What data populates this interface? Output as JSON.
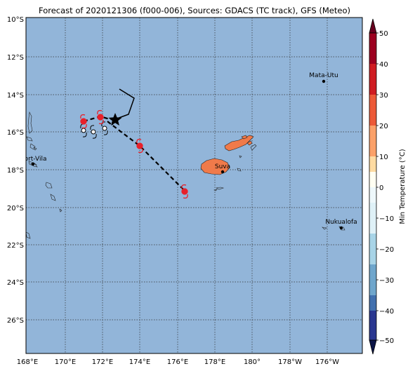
{
  "title": "Forecast of 2020121306 (f000-006), Sources: GDACS (TC track), GFS (Meteo)",
  "map": {
    "background_color": "#92b5d9",
    "land_color": "#f07a4a",
    "lat_labels": [
      "10°S",
      "12°S",
      "14°S",
      "16°S",
      "18°S",
      "20°S",
      "22°S",
      "24°S",
      "26°S"
    ],
    "lon_labels": [
      "168°E",
      "170°E",
      "172°E",
      "174°E",
      "176°E",
      "178°E",
      "180°",
      "178°W",
      "176°W"
    ],
    "cities": [
      {
        "name": "Mata-Utu"
      },
      {
        "name": "Port-Vila"
      },
      {
        "name": "Suva"
      },
      {
        "name": "Nukualofa"
      }
    ],
    "storm_marker_colors": {
      "past": "#ffffff",
      "forecast": "#e8202a"
    },
    "star_icon": "current-position-star-icon"
  },
  "colorbar": {
    "label": "Min Temperature (°C)",
    "ticks": [
      "50",
      "40",
      "30",
      "20",
      "10",
      "0",
      "−10",
      "−20",
      "−30",
      "−40",
      "−50"
    ],
    "colors": [
      "#9c0020",
      "#cf1c22",
      "#ec5a38",
      "#fba169",
      "#fedba2",
      "#fffff2",
      "#dff1f7",
      "#a8d4e7",
      "#6fa6cc",
      "#4270ae",
      "#2a3790",
      "#191f62"
    ]
  }
}
